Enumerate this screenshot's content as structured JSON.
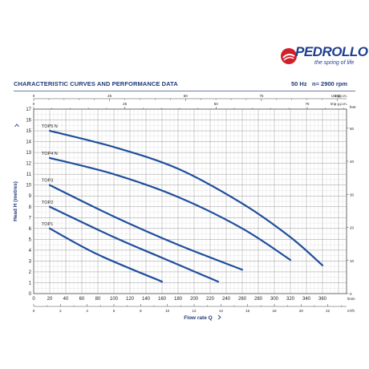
{
  "brand": {
    "name": "PEDROLLO",
    "tagline": "the spring of life",
    "accent": "#d0202a",
    "blue": "#1d3f8f"
  },
  "header": {
    "title": "CHARACTERISTIC CURVES AND PERFORMANCE DATA",
    "frequency": "50 Hz",
    "speed": "n= 2900 rpm"
  },
  "chart_data": {
    "type": "line",
    "xlabel": "Flow rate Q",
    "ylabel": "Head H (metres)",
    "xlim": [
      0,
      390
    ],
    "ylim": [
      0,
      17
    ],
    "grid": true,
    "x_primary_unit": "l/min",
    "x_primary_ticks": [
      0,
      20,
      40,
      60,
      80,
      100,
      120,
      140,
      160,
      180,
      200,
      220,
      240,
      260,
      280,
      300,
      320,
      340,
      360
    ],
    "x_m3h_unit": "m³/h",
    "x_m3h_ticks": [
      "0",
      "2",
      "4",
      "6",
      "8",
      "10",
      "12",
      "14",
      "16",
      "18",
      "20",
      "22"
    ],
    "x_usgpm_unit": "US g.p.m.",
    "x_usgpm_ticks": [
      "0",
      "25",
      "50",
      "75",
      "100"
    ],
    "x_impgpm_unit": "Imp g.p.m.",
    "x_impgpm_ticks": [
      "0",
      "25",
      "50",
      "75"
    ],
    "y_ticks": [
      "0",
      "1",
      "2",
      "3",
      "4",
      "5",
      "6",
      "7",
      "8",
      "9",
      "10",
      "11",
      "12",
      "13",
      "14",
      "15",
      "16",
      "17"
    ],
    "y2_unit": "feet",
    "y2_ticks": [
      "0",
      "10",
      "20",
      "30",
      "40",
      "50"
    ],
    "series": [
      {
        "name": "TOP1",
        "x": [
          20,
          80,
          160
        ],
        "y": [
          6,
          3.6,
          1.1
        ]
      },
      {
        "name": "TOP2",
        "x": [
          20,
          100,
          160,
          230
        ],
        "y": [
          8,
          5.2,
          3.3,
          1.1
        ]
      },
      {
        "name": "TOP3",
        "x": [
          20,
          100,
          180,
          260
        ],
        "y": [
          10,
          7.1,
          4.5,
          2.2
        ]
      },
      {
        "name": "TOP4 N",
        "x": [
          20,
          100,
          180,
          260,
          320
        ],
        "y": [
          12.5,
          11,
          8.9,
          6,
          3.1
        ]
      },
      {
        "name": "TOP5 N",
        "x": [
          20,
          100,
          180,
          260,
          320,
          360
        ],
        "y": [
          15,
          13.5,
          11.5,
          8.3,
          5.2,
          2.6
        ]
      }
    ],
    "line_color": "#1f4e9c"
  }
}
